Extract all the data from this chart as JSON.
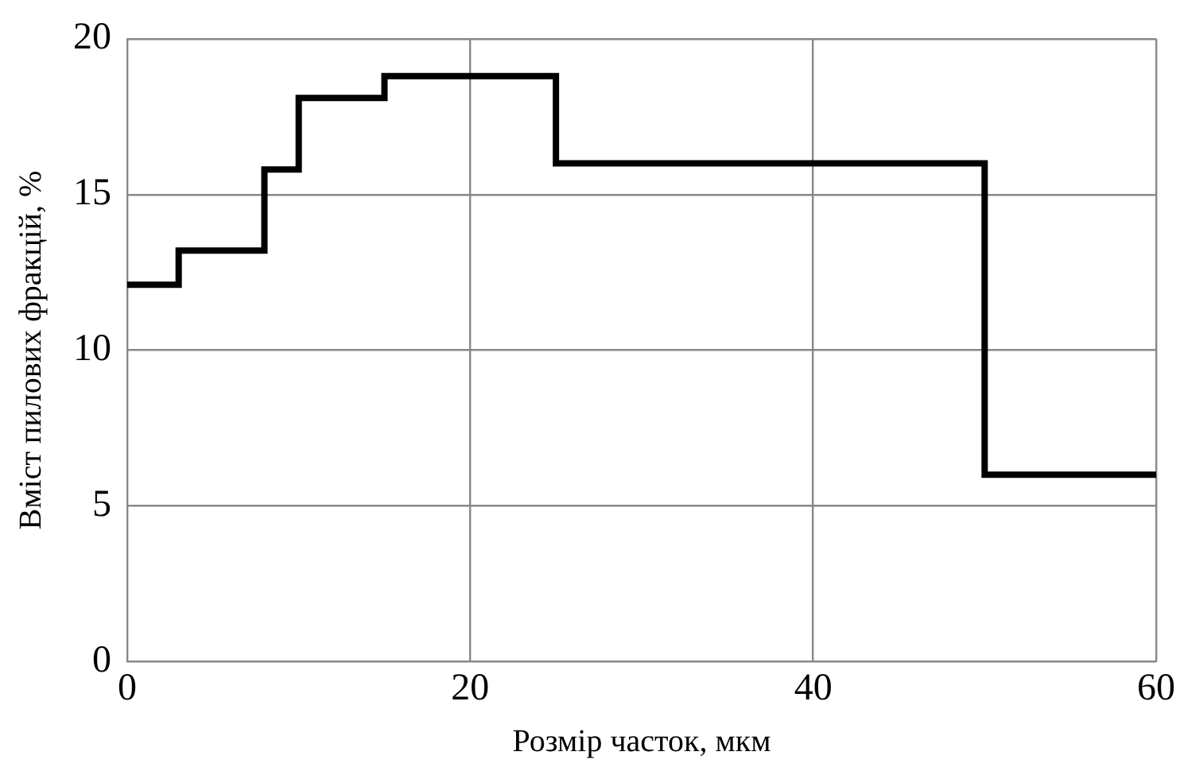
{
  "chart_data": {
    "type": "step",
    "xlabel": "Розмір часток, мкм",
    "ylabel": "Вміст пилових фракцій, %",
    "x": [
      0,
      3,
      8,
      10,
      15,
      25,
      50,
      60
    ],
    "series": [
      {
        "color": "#000000",
        "values": [
          12.1,
          13.2,
          15.8,
          18.1,
          18.8,
          16,
          6,
          6
        ]
      }
    ],
    "xlim": [
      0,
      60
    ],
    "xticks": [
      0,
      20,
      40,
      60
    ],
    "ylim": [
      0,
      20
    ],
    "yticks": [
      0,
      5,
      10,
      15,
      20
    ],
    "grid": true,
    "legend": false,
    "marker": "none",
    "line_style": "solid"
  }
}
